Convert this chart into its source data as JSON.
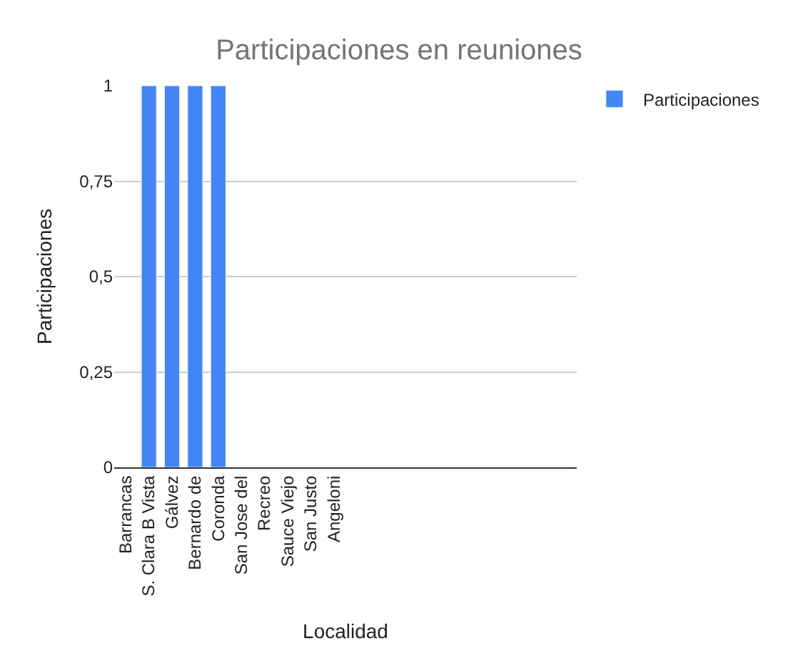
{
  "chart_data": {
    "type": "bar",
    "title": "Participaciones en reuniones",
    "xlabel": "Localidad",
    "ylabel": "Participaciones",
    "categories": [
      "Barrancas",
      "S. Clara B Vista",
      "Gálvez",
      "Bernardo de",
      "Coronda",
      "San Jose del",
      "Recreo",
      "Sauce Viejo",
      "San Justo",
      "Angeloni",
      null,
      null,
      null,
      null,
      null,
      null,
      null,
      null,
      null,
      null
    ],
    "series": [
      {
        "name": "Participaciones",
        "color": "#4285f4",
        "values": [
          null,
          1,
          1,
          1,
          1,
          null,
          null,
          null,
          null,
          null,
          null,
          null,
          null,
          null,
          null,
          null,
          null,
          null,
          null,
          null
        ]
      }
    ],
    "ylim": [
      0,
      1
    ],
    "yticks": [
      0,
      {
        "value": 0.25,
        "label": "0,25"
      },
      {
        "value": 0.5,
        "label": "0,5"
      },
      {
        "value": 0.75,
        "label": "0,75"
      },
      1
    ],
    "grid": "y",
    "legend": "top right"
  }
}
